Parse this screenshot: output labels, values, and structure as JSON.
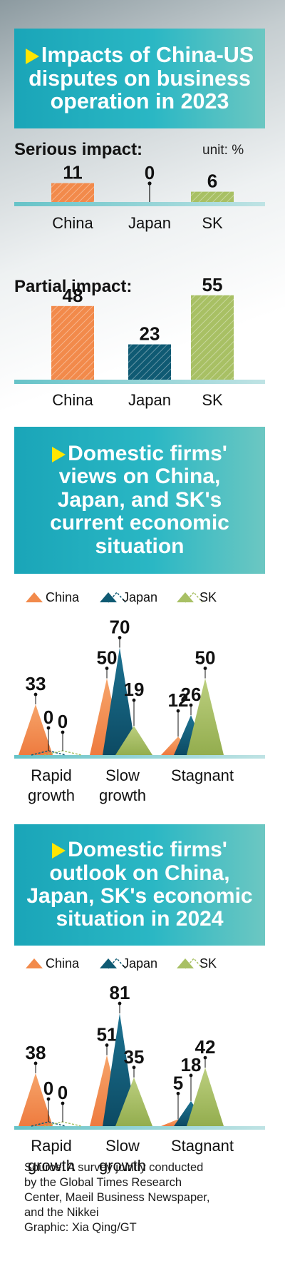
{
  "chart_data": [
    {
      "type": "bar",
      "title": "Impacts of China-US disputes on business operation in 2023",
      "subtitle": "Serious impact:",
      "unit": "unit: %",
      "categories": [
        "China",
        "Japan",
        "SK"
      ],
      "values": [
        11,
        0,
        6
      ],
      "colors": [
        "#f28a4b",
        "#0f5a73",
        "#a8c064"
      ]
    },
    {
      "type": "bar",
      "subtitle": "Partial impact:",
      "categories": [
        "China",
        "Japan",
        "SK"
      ],
      "values": [
        48,
        23,
        55
      ],
      "colors": [
        "#f28a4b",
        "#0f5a73",
        "#a8c064"
      ]
    },
    {
      "type": "area",
      "title": "Domestic firms' views on China, Japan, and SK's current economic situation",
      "legend": [
        "China",
        "Japan",
        "SK"
      ],
      "categories": [
        "Rapid growth",
        "Slow growth",
        "Stagnant"
      ],
      "series": [
        {
          "name": "China",
          "values": [
            33,
            50,
            12
          ]
        },
        {
          "name": "Japan",
          "values": [
            0,
            70,
            26
          ]
        },
        {
          "name": "SK",
          "values": [
            0,
            19,
            50
          ]
        }
      ]
    },
    {
      "type": "area",
      "title": "Domestic firms' outlook on China, Japan, SK's economic situation in 2024",
      "legend": [
        "China",
        "Japan",
        "SK"
      ],
      "categories": [
        "Rapid growth",
        "Slow growth",
        "Stagnant"
      ],
      "series": [
        {
          "name": "China",
          "values": [
            38,
            51,
            5
          ]
        },
        {
          "name": "Japan",
          "values": [
            0,
            81,
            18
          ]
        },
        {
          "name": "SK",
          "values": [
            0,
            35,
            42
          ]
        }
      ]
    }
  ],
  "source": {
    "lines": [
      "Source: A survey jointly conducted",
      "by the Global Times Research",
      "Center, Maeil Business Newspaper,",
      "and the Nikkei",
      "Graphic: Xia Qing/GT"
    ]
  },
  "colors": {
    "china": "#f28a4b",
    "japan": "#0f5a73",
    "sk": "#a8c064",
    "banner": "#1aa5b8",
    "triangle": "#ffe600"
  }
}
